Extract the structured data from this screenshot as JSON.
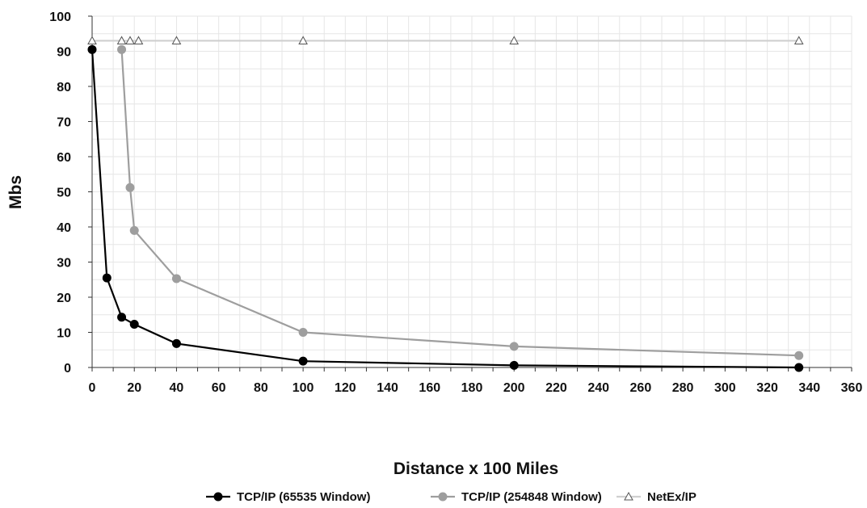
{
  "chart_data": {
    "type": "line",
    "xlabel": "Distance x 100 Miles",
    "ylabel": "Mbs",
    "xlim": [
      0,
      360
    ],
    "ylim": [
      0,
      100
    ],
    "x_ticks": [
      "0",
      "20",
      "40",
      "60",
      "80",
      "100",
      "120",
      "140",
      "160",
      "180",
      "200",
      "220",
      "240",
      "260",
      "280",
      "300",
      "320",
      "340",
      "360"
    ],
    "y_ticks": [
      "0",
      "10",
      "20",
      "30",
      "40",
      "50",
      "60",
      "70",
      "80",
      "90",
      "100"
    ],
    "grid": true,
    "legend_position": "bottom",
    "series": [
      {
        "name": "TCP/IP (65535 Window)",
        "color": "#000000",
        "marker": "circle",
        "x": [
          0,
          7,
          14,
          20,
          40,
          100,
          200,
          335
        ],
        "y": [
          90.5,
          25.5,
          14.3,
          12.3,
          6.8,
          1.8,
          0.6,
          0
        ]
      },
      {
        "name": "TCP/IP (254848 Window)",
        "color": "#9e9e9e",
        "marker": "circle",
        "x": [
          14,
          18,
          20,
          40,
          100,
          200,
          335
        ],
        "y": [
          90.5,
          51.2,
          39,
          25.3,
          10,
          6,
          3.4
        ]
      },
      {
        "name": "NetEx/IP",
        "color": "#cfcfcf",
        "marker": "triangle",
        "x": [
          0,
          14,
          18,
          22,
          40,
          100,
          200,
          335
        ],
        "y": [
          93,
          93,
          93,
          93,
          93,
          93,
          93,
          93
        ]
      }
    ]
  }
}
